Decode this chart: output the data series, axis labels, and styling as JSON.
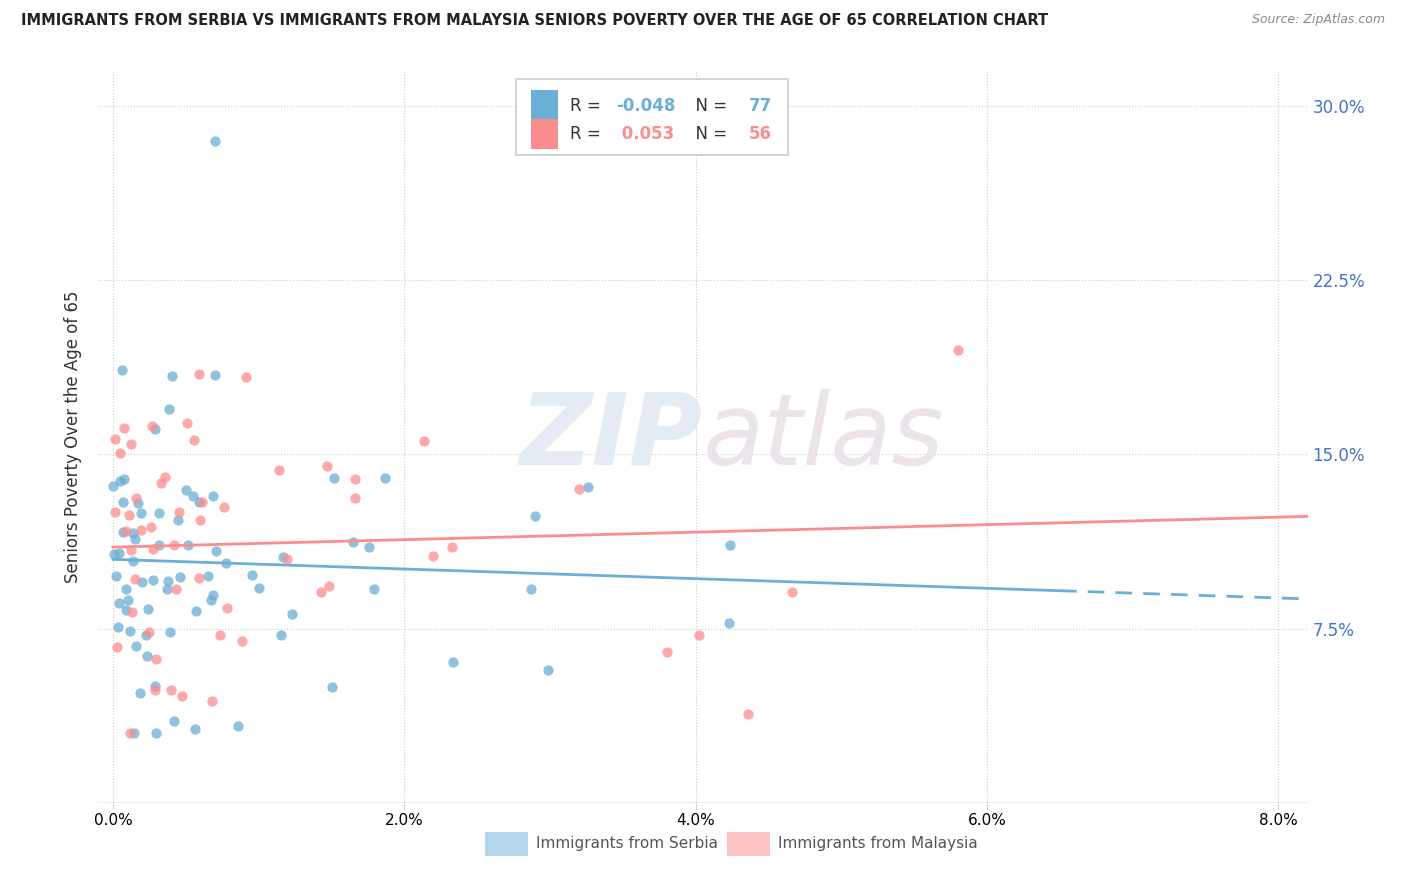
{
  "title": "IMMIGRANTS FROM SERBIA VS IMMIGRANTS FROM MALAYSIA SENIORS POVERTY OVER THE AGE OF 65 CORRELATION CHART",
  "source": "Source: ZipAtlas.com",
  "ylabel": "Seniors Poverty Over the Age of 65",
  "xlabel_serbia": "Immigrants from Serbia",
  "xlabel_malaysia": "Immigrants from Malaysia",
  "xlim": [
    -0.001,
    0.082
  ],
  "ylim": [
    0.0,
    0.315
  ],
  "yticks": [
    0.0,
    0.075,
    0.15,
    0.225,
    0.3
  ],
  "ytick_labels_right": [
    "",
    "7.5%",
    "15.0%",
    "22.5%",
    "30.0%"
  ],
  "xtick_labels": [
    "0.0%",
    "2.0%",
    "4.0%",
    "6.0%",
    "8.0%"
  ],
  "xticks": [
    0.0,
    0.02,
    0.04,
    0.06,
    0.08
  ],
  "color_serbia": "#6baed6",
  "color_malaysia": "#fc8d8d",
  "R_serbia": -0.048,
  "N_serbia": 77,
  "R_malaysia": 0.053,
  "N_malaysia": 56,
  "watermark_text": "ZIPatlas",
  "serbia_seed": 10,
  "malaysia_seed": 20
}
